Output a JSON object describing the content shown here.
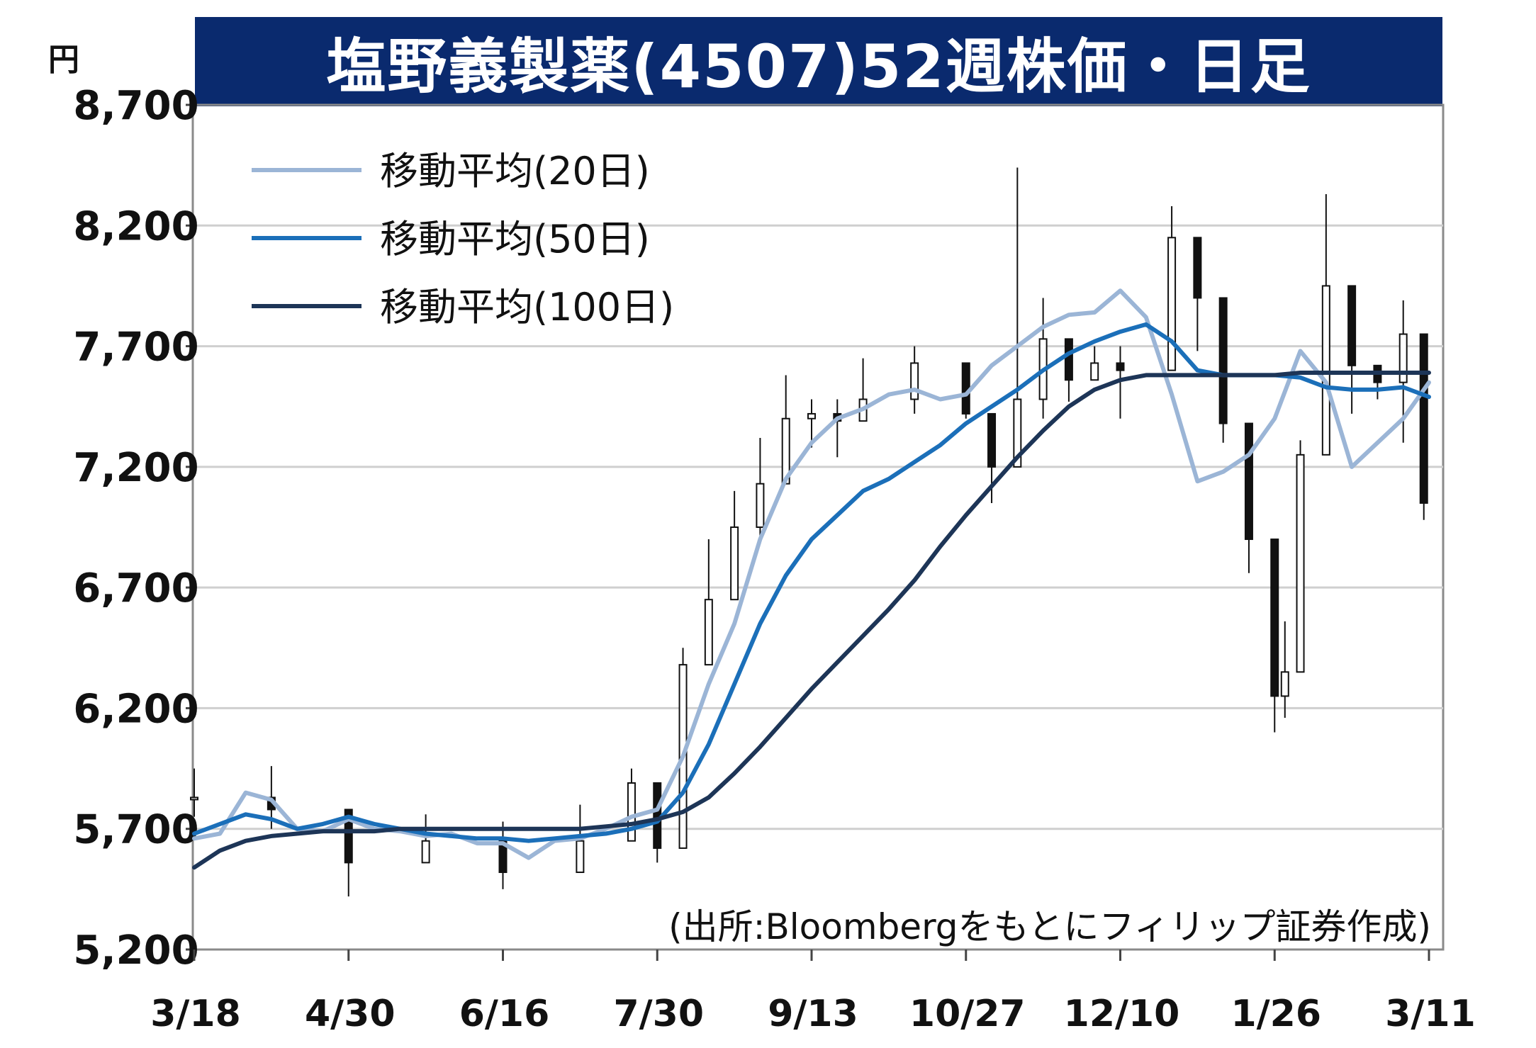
{
  "title": "塩野義製薬(4507)52週株価・日足",
  "y_unit": "円",
  "source": "(出所:Bloombergをもとにフィリップ証券作成)",
  "chart_data": {
    "type": "line",
    "title": "塩野義製薬(4507)52週株価・日足",
    "ylabel": "円",
    "ylim": [
      5200,
      8700
    ],
    "yticks": [
      "5,200",
      "5,700",
      "6,200",
      "6,700",
      "7,200",
      "7,700",
      "8,200",
      "8,700"
    ],
    "ytick_values": [
      5200,
      5700,
      6200,
      6700,
      7200,
      7700,
      8200,
      8700
    ],
    "xtick_labels": [
      "3/18",
      "4/30",
      "6/16",
      "7/30",
      "9/13",
      "10/27",
      "12/10",
      "1/26",
      "3/11"
    ],
    "xtick_index": [
      0,
      30,
      60,
      90,
      120,
      150,
      180,
      210,
      240
    ],
    "grid": true,
    "legend": "top-left",
    "candlesticks": {
      "index": [
        0,
        15,
        30,
        45,
        60,
        75,
        85,
        90,
        95,
        100,
        105,
        110,
        115,
        120,
        125,
        130,
        140,
        150,
        155,
        160,
        165,
        170,
        175,
        180,
        190,
        195,
        200,
        205,
        210,
        212,
        215,
        220,
        225,
        230,
        235,
        239
      ],
      "close": [
        5830,
        5780,
        5560,
        5650,
        5520,
        5650,
        5890,
        5620,
        6380,
        6650,
        6950,
        7130,
        7400,
        7420,
        7390,
        7480,
        7630,
        7420,
        7200,
        7480,
        7730,
        7560,
        7630,
        7600,
        8150,
        7900,
        7380,
        6900,
        6250,
        6350,
        7250,
        7950,
        7620,
        7550,
        7750,
        7050
      ],
      "high": [
        5950,
        5960,
        5650,
        5760,
        5730,
        5800,
        5950,
        5800,
        6450,
        6900,
        7100,
        7320,
        7580,
        7480,
        7480,
        7650,
        7700,
        7620,
        7320,
        8440,
        7900,
        7700,
        7700,
        7700,
        8280,
        8020,
        7460,
        7000,
        6700,
        6560,
        7310,
        8330,
        7700,
        7620,
        7890,
        7250
      ],
      "low": [
        5750,
        5700,
        5420,
        5600,
        5450,
        5560,
        5750,
        5560,
        6000,
        6430,
        6750,
        6900,
        7260,
        7280,
        7240,
        7420,
        7420,
        7400,
        7050,
        7350,
        7400,
        7470,
        7560,
        7400,
        7960,
        7680,
        7300,
        6760,
        6100,
        6160,
        6900,
        7400,
        7420,
        7480,
        7300,
        6980
      ]
    },
    "series": [
      {
        "name": "移動平均(20日)",
        "color": "#9bb5d6",
        "x": [
          0,
          5,
          10,
          15,
          20,
          25,
          30,
          35,
          40,
          45,
          50,
          55,
          60,
          65,
          70,
          75,
          80,
          85,
          90,
          95,
          100,
          105,
          110,
          115,
          120,
          125,
          130,
          135,
          140,
          145,
          150,
          155,
          160,
          165,
          170,
          175,
          180,
          185,
          190,
          195,
          200,
          205,
          210,
          215,
          220,
          225,
          230,
          235,
          240
        ],
        "values": [
          5660,
          5680,
          5850,
          5820,
          5700,
          5690,
          5740,
          5700,
          5690,
          5670,
          5680,
          5640,
          5640,
          5580,
          5650,
          5660,
          5700,
          5750,
          5780,
          6000,
          6300,
          6550,
          6900,
          7150,
          7300,
          7400,
          7440,
          7500,
          7520,
          7480,
          7500,
          7620,
          7700,
          7780,
          7830,
          7840,
          7930,
          7820,
          7500,
          7140,
          7180,
          7250,
          7400,
          7680,
          7550,
          7200,
          7300,
          7400,
          7550
        ]
      },
      {
        "name": "移動平均(50日)",
        "color": "#1b6fb9",
        "x": [
          0,
          5,
          10,
          15,
          20,
          25,
          30,
          35,
          40,
          45,
          50,
          55,
          60,
          65,
          70,
          75,
          80,
          85,
          90,
          95,
          100,
          105,
          110,
          115,
          120,
          125,
          130,
          135,
          140,
          145,
          150,
          155,
          160,
          165,
          170,
          175,
          180,
          185,
          190,
          195,
          200,
          205,
          210,
          215,
          220,
          225,
          230,
          235,
          240
        ],
        "values": [
          5680,
          5720,
          5760,
          5740,
          5700,
          5720,
          5750,
          5720,
          5700,
          5680,
          5670,
          5660,
          5660,
          5650,
          5660,
          5670,
          5680,
          5700,
          5730,
          5850,
          6050,
          6300,
          6550,
          6750,
          6900,
          7000,
          7100,
          7150,
          7220,
          7290,
          7380,
          7450,
          7520,
          7600,
          7670,
          7720,
          7760,
          7790,
          7720,
          7600,
          7580,
          7580,
          7580,
          7570,
          7530,
          7520,
          7520,
          7530,
          7490
        ]
      },
      {
        "name": "移動平均(100日)",
        "color": "#1d3557",
        "x": [
          0,
          5,
          10,
          15,
          20,
          25,
          30,
          35,
          40,
          45,
          50,
          55,
          60,
          65,
          70,
          75,
          80,
          85,
          90,
          95,
          100,
          105,
          110,
          115,
          120,
          125,
          130,
          135,
          140,
          145,
          150,
          155,
          160,
          165,
          170,
          175,
          180,
          185,
          190,
          195,
          200,
          205,
          210,
          215,
          220,
          225,
          230,
          235,
          240
        ],
        "values": [
          5540,
          5610,
          5650,
          5670,
          5680,
          5690,
          5690,
          5690,
          5700,
          5700,
          5700,
          5700,
          5700,
          5700,
          5700,
          5700,
          5710,
          5720,
          5740,
          5770,
          5830,
          5930,
          6040,
          6160,
          6280,
          6390,
          6500,
          6610,
          6730,
          6870,
          7000,
          7120,
          7240,
          7350,
          7450,
          7520,
          7560,
          7580,
          7580,
          7580,
          7580,
          7580,
          7580,
          7590,
          7590,
          7590,
          7590,
          7590,
          7590
        ]
      }
    ]
  }
}
